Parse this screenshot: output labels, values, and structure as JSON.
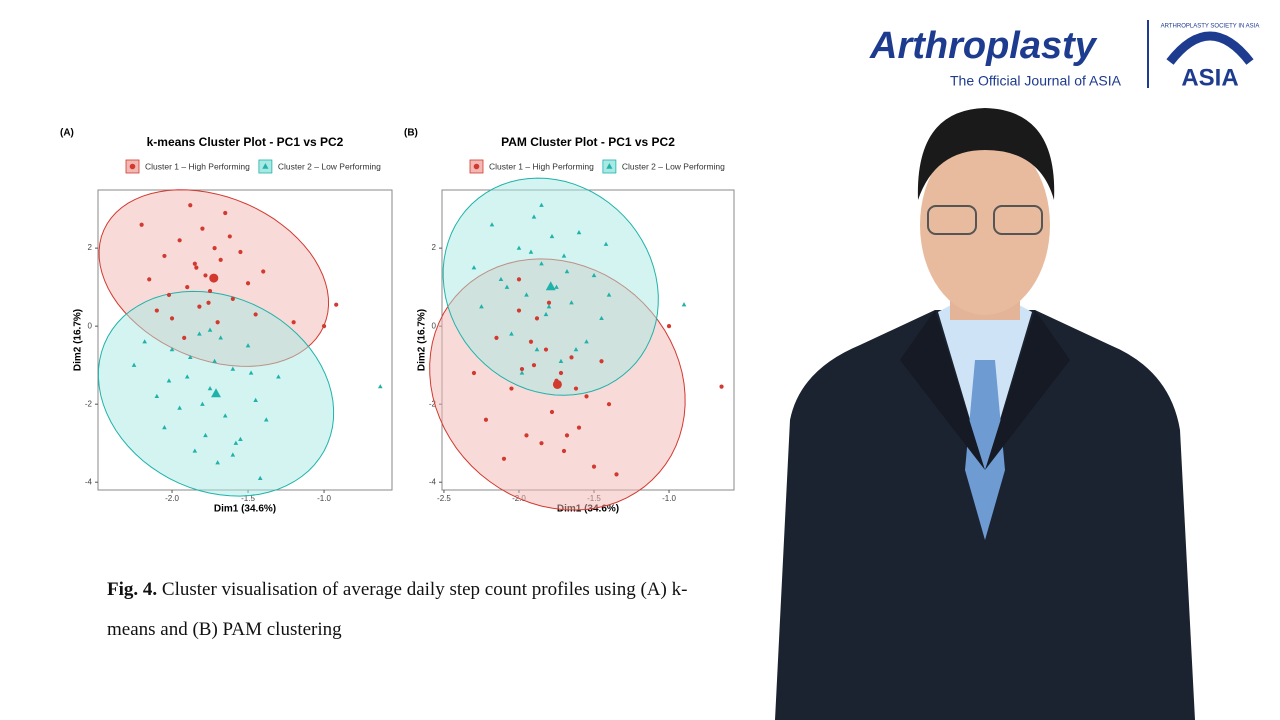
{
  "header": {
    "logo_title": "Arthroplasty",
    "logo_subtitle": "The Official Journal of ASIA",
    "society_name": "ARTHROPLASTY SOCIETY IN ASIA",
    "society_short": "ASIA"
  },
  "chart_data": [
    {
      "type": "scatter",
      "panel_label": "(A)",
      "title": "k-means Cluster Plot - PC1 vs PC2",
      "x_label": "Dim1 (34.6%)",
      "y_label": "Dim2 (16.7%)",
      "xlim": [
        -2.487,
        -0.553
      ],
      "xticks": [
        {
          "value": -2,
          "label": "-2.0"
        },
        {
          "value": -1.5,
          "label": "-1.5"
        },
        {
          "value": -1,
          "label": "-1.0"
        }
      ],
      "ylim": [
        -4.2,
        3.49
      ],
      "yticks": [
        -4,
        -2,
        0,
        2
      ],
      "legend": "top",
      "series": [
        {
          "name": "Cluster 1 – High Performing",
          "color": "#d2392f",
          "fill": "#f2b8b3",
          "marker": "circle",
          "x": [
            -2.2,
            -2.15,
            -2.1,
            -2.05,
            -2.0,
            -1.95,
            -1.9,
            -1.88,
            -1.85,
            -1.82,
            -1.8,
            -1.78,
            -1.75,
            -1.72,
            -1.7,
            -1.68,
            -1.65,
            -1.6,
            -1.55,
            -1.5,
            -1.45,
            -1.4,
            -1.92,
            -2.02,
            -1.76,
            -1.62,
            -1.84,
            -1.0,
            -0.92,
            -1.2
          ],
          "values": [
            2.6,
            1.2,
            0.4,
            1.8,
            0.2,
            2.2,
            1.0,
            3.1,
            1.6,
            0.5,
            2.5,
            1.3,
            0.9,
            2.0,
            0.1,
            1.7,
            2.9,
            0.7,
            1.9,
            1.1,
            0.3,
            1.4,
            -0.3,
            0.8,
            0.6,
            2.3,
            1.5,
            0.0,
            0.55,
            0.1
          ]
        },
        {
          "name": "Cluster 2 – Low Performing",
          "color": "#1fb2aa",
          "fill": "#a8e9e4",
          "marker": "triangle",
          "x": [
            -2.25,
            -2.18,
            -2.1,
            -2.05,
            -2.0,
            -1.95,
            -1.9,
            -1.85,
            -1.82,
            -1.78,
            -1.75,
            -1.72,
            -1.7,
            -1.65,
            -1.6,
            -1.55,
            -1.5,
            -1.45,
            -1.42,
            -1.38,
            -1.3,
            -1.88,
            -2.02,
            -1.68,
            -1.58,
            -1.8,
            -1.48,
            -1.6,
            -1.75,
            -0.63
          ],
          "values": [
            -1.0,
            -0.4,
            -1.8,
            -2.6,
            -0.6,
            -2.1,
            -1.3,
            -3.2,
            -0.2,
            -2.8,
            -1.6,
            -0.9,
            -3.5,
            -2.3,
            -1.1,
            -2.9,
            -0.5,
            -1.9,
            -3.9,
            -2.4,
            -1.3,
            -0.8,
            -1.4,
            -0.3,
            -3.0,
            -2.0,
            -1.2,
            -3.3,
            -0.1,
            -1.55
          ]
        }
      ]
    },
    {
      "type": "scatter",
      "panel_label": "(B)",
      "title": "PAM Cluster Plot - PC1 vs PC2",
      "x_label": "Dim1 (34.6%)",
      "y_label": "Dim2 (16.7%)",
      "xlim": [
        -2.513,
        -0.567
      ],
      "xticks": [
        {
          "value": -2.5,
          "label": "-2.5"
        },
        {
          "value": -2,
          "label": "-2.0"
        },
        {
          "value": -1.5,
          "label": "-1.5"
        },
        {
          "value": -1,
          "label": "-1.0"
        }
      ],
      "ylim": [
        -4.2,
        3.49
      ],
      "yticks": [
        -4,
        -2,
        0,
        2
      ],
      "legend": "top",
      "series": [
        {
          "name": "Cluster 1 – High Performing",
          "color": "#d2392f",
          "fill": "#f2b8b3",
          "marker": "circle",
          "x": [
            -2.3,
            -2.22,
            -2.15,
            -2.1,
            -2.05,
            -2.0,
            -1.95,
            -1.9,
            -1.85,
            -1.82,
            -1.78,
            -1.75,
            -1.7,
            -1.65,
            -1.6,
            -1.55,
            -1.5,
            -1.45,
            -1.4,
            -2.0,
            -1.88,
            -1.72,
            -1.62,
            -1.8,
            -1.98,
            -1.68,
            -1.35,
            -1.0,
            -0.65,
            -1.92
          ],
          "values": [
            -1.2,
            -2.4,
            -0.3,
            -3.4,
            -1.6,
            0.4,
            -2.8,
            -1.0,
            -3.0,
            -0.6,
            -2.2,
            -1.4,
            -3.2,
            -0.8,
            -2.6,
            -1.8,
            -3.6,
            -0.9,
            -2.0,
            1.2,
            0.2,
            -1.2,
            -1.6,
            0.6,
            -1.1,
            -2.8,
            -3.8,
            0.0,
            -1.55,
            -0.4
          ]
        },
        {
          "name": "Cluster 2 – Low Performing",
          "color": "#1fb2aa",
          "fill": "#a8e9e4",
          "marker": "triangle",
          "x": [
            -2.3,
            -2.25,
            -2.18,
            -2.12,
            -2.05,
            -2.0,
            -1.95,
            -1.9,
            -1.88,
            -1.85,
            -1.82,
            -1.78,
            -1.75,
            -1.72,
            -1.7,
            -1.65,
            -1.6,
            -1.55,
            -1.5,
            -1.45,
            -1.42,
            -1.4,
            -1.98,
            -2.08,
            -1.8,
            -1.62,
            -1.92,
            -1.68,
            -0.9,
            -1.85
          ],
          "values": [
            1.5,
            0.5,
            2.6,
            1.2,
            -0.2,
            2.0,
            0.8,
            2.8,
            -0.6,
            1.6,
            0.3,
            2.3,
            1.0,
            -0.9,
            1.8,
            0.6,
            2.4,
            -0.4,
            1.3,
            0.2,
            2.1,
            0.8,
            -1.2,
            1.0,
            0.5,
            -0.6,
            1.9,
            1.4,
            0.55,
            3.1
          ]
        }
      ]
    }
  ],
  "caption": {
    "label": "Fig. 4.",
    "text": "Cluster visualisation of average daily step count profiles using (A) k-means and (B) PAM clustering"
  }
}
